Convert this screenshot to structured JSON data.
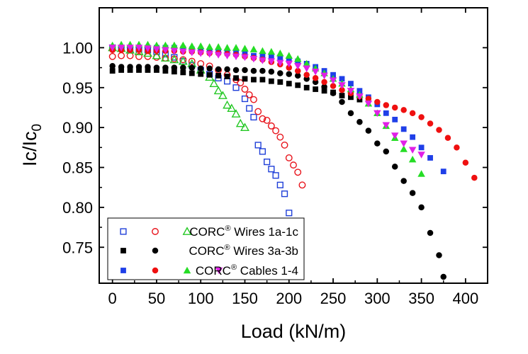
{
  "chart_data": {
    "type": "scatter",
    "title": "",
    "xlabel": "Load (kN/m)",
    "ylabel": {
      "main": "Ic/Ic",
      "sub": "0"
    },
    "xlim": [
      -15,
      425
    ],
    "ylim": [
      0.705,
      1.05
    ],
    "xticks": [
      0,
      50,
      100,
      150,
      200,
      250,
      300,
      350,
      400
    ],
    "yticks": [
      0.75,
      0.8,
      0.85,
      0.9,
      0.95,
      1.0
    ],
    "xtick_labels": [
      "0",
      "50",
      "100",
      "150",
      "200",
      "250",
      "300",
      "350",
      "400"
    ],
    "ytick_labels": [
      "0.75",
      "0.80",
      "0.85",
      "0.90",
      "0.95",
      "1.00"
    ],
    "grid": false,
    "legend_position": "bottom-left",
    "legend": [
      {
        "group": "wires-1",
        "text": "CORC",
        "mark": "®",
        "suffix": " Wires 1a-1c"
      },
      {
        "group": "wires-3",
        "text": "CORC",
        "mark": "®",
        "suffix": " Wires 3a-3b"
      },
      {
        "group": "cables",
        "text": "CORC",
        "mark": "®",
        "suffix": " Cables 1-4"
      }
    ],
    "series": [
      {
        "name": "Wire 1a",
        "group": "wires-1",
        "marker": "square",
        "filled": false,
        "color": "#1f3fd8",
        "x": [
          0,
          10,
          20,
          30,
          40,
          50,
          60,
          70,
          80,
          90,
          100,
          110,
          120,
          130,
          140,
          150,
          155,
          160,
          165,
          170,
          175,
          180,
          185,
          190,
          195,
          200
        ],
        "y": [
          1.0,
          0.999,
          0.998,
          0.998,
          0.997,
          0.995,
          0.992,
          0.988,
          0.983,
          0.978,
          0.972,
          0.967,
          0.962,
          0.958,
          0.95,
          0.936,
          0.924,
          0.913,
          0.878,
          0.87,
          0.857,
          0.848,
          0.84,
          0.828,
          0.817,
          0.793
        ]
      },
      {
        "name": "Wire 1b",
        "group": "wires-1",
        "marker": "circle",
        "filled": false,
        "color": "#e8141c",
        "x": [
          0,
          10,
          20,
          30,
          40,
          50,
          60,
          70,
          80,
          90,
          100,
          110,
          120,
          130,
          140,
          145,
          150,
          155,
          160,
          165,
          170,
          175,
          180,
          185,
          190,
          195,
          200,
          205,
          210,
          215
        ],
        "y": [
          0.989,
          0.99,
          0.99,
          0.989,
          0.989,
          0.988,
          0.987,
          0.986,
          0.985,
          0.983,
          0.98,
          0.977,
          0.972,
          0.966,
          0.96,
          0.956,
          0.948,
          0.941,
          0.935,
          0.92,
          0.911,
          0.909,
          0.902,
          0.896,
          0.888,
          0.878,
          0.862,
          0.853,
          0.844,
          0.828
        ]
      },
      {
        "name": "Wire 1c",
        "group": "wires-1",
        "marker": "triangle-up",
        "filled": false,
        "color": "#25c825",
        "x": [
          0,
          10,
          20,
          30,
          40,
          50,
          60,
          70,
          80,
          90,
          100,
          110,
          115,
          120,
          125,
          130,
          135,
          140,
          145,
          150
        ],
        "y": [
          1.0,
          0.999,
          0.997,
          0.995,
          0.993,
          0.99,
          0.987,
          0.985,
          0.983,
          0.98,
          0.972,
          0.963,
          0.955,
          0.946,
          0.94,
          0.928,
          0.924,
          0.917,
          0.905,
          0.9
        ]
      },
      {
        "name": "Wire 3a",
        "group": "wires-3",
        "marker": "square",
        "filled": true,
        "color": "#000000",
        "x": [
          0,
          10,
          20,
          30,
          40,
          50,
          60,
          70,
          80,
          90,
          100,
          110,
          120,
          130,
          140,
          150,
          160,
          170,
          180,
          190,
          200,
          210,
          220,
          230,
          240,
          250,
          260,
          270,
          280
        ],
        "y": [
          0.971,
          0.972,
          0.972,
          0.972,
          0.972,
          0.972,
          0.971,
          0.97,
          0.969,
          0.968,
          0.967,
          0.966,
          0.965,
          0.964,
          0.962,
          0.961,
          0.96,
          0.96,
          0.958,
          0.957,
          0.955,
          0.953,
          0.95,
          0.948,
          0.946,
          0.944,
          0.94,
          0.938,
          0.935
        ]
      },
      {
        "name": "Wire 3b",
        "group": "wires-3",
        "marker": "circle",
        "filled": true,
        "color": "#000000",
        "x": [
          0,
          10,
          20,
          30,
          40,
          50,
          60,
          70,
          80,
          90,
          100,
          110,
          120,
          130,
          140,
          150,
          160,
          170,
          180,
          190,
          200,
          210,
          220,
          230,
          240,
          250,
          260,
          270,
          280,
          290,
          300,
          310,
          320,
          330,
          340,
          350,
          360,
          370,
          375
        ],
        "y": [
          0.977,
          0.976,
          0.976,
          0.976,
          0.976,
          0.975,
          0.975,
          0.975,
          0.975,
          0.975,
          0.974,
          0.974,
          0.973,
          0.973,
          0.972,
          0.972,
          0.971,
          0.971,
          0.97,
          0.968,
          0.967,
          0.965,
          0.961,
          0.957,
          0.951,
          0.943,
          0.932,
          0.918,
          0.907,
          0.896,
          0.88,
          0.87,
          0.851,
          0.833,
          0.818,
          0.8,
          0.768,
          0.74,
          0.713
        ]
      },
      {
        "name": "Cable 1",
        "group": "cables",
        "marker": "square",
        "filled": true,
        "color": "#1f3fe8",
        "x": [
          0,
          10,
          20,
          30,
          40,
          50,
          60,
          70,
          80,
          90,
          100,
          110,
          120,
          130,
          140,
          150,
          160,
          170,
          180,
          190,
          200,
          210,
          220,
          230,
          240,
          250,
          260,
          270,
          280,
          290,
          300,
          310,
          320,
          330,
          340,
          350,
          360,
          375
        ],
        "y": [
          1.0,
          1.0,
          1.0,
          1.0,
          1.0,
          1.0,
          1.0,
          1.0,
          0.999,
          0.998,
          0.997,
          0.996,
          0.995,
          0.994,
          0.993,
          0.992,
          0.99,
          0.989,
          0.988,
          0.987,
          0.985,
          0.983,
          0.98,
          0.976,
          0.971,
          0.966,
          0.961,
          0.955,
          0.946,
          0.938,
          0.929,
          0.918,
          0.91,
          0.898,
          0.888,
          0.875,
          0.862,
          0.845
        ]
      },
      {
        "name": "Cable 2",
        "group": "cables",
        "marker": "circle",
        "filled": true,
        "color": "#ef1010",
        "x": [
          0,
          10,
          20,
          30,
          40,
          50,
          60,
          70,
          80,
          90,
          100,
          110,
          120,
          130,
          140,
          150,
          160,
          170,
          180,
          190,
          200,
          210,
          220,
          230,
          240,
          250,
          260,
          270,
          280,
          290,
          300,
          310,
          320,
          330,
          340,
          350,
          360,
          370,
          380,
          390,
          400,
          410
        ],
        "y": [
          0.997,
          0.997,
          0.997,
          0.997,
          0.996,
          0.996,
          0.996,
          0.996,
          0.995,
          0.995,
          0.994,
          0.993,
          0.993,
          0.992,
          0.991,
          0.989,
          0.987,
          0.985,
          0.982,
          0.979,
          0.975,
          0.971,
          0.966,
          0.962,
          0.957,
          0.952,
          0.947,
          0.943,
          0.939,
          0.936,
          0.932,
          0.928,
          0.925,
          0.922,
          0.918,
          0.913,
          0.905,
          0.897,
          0.887,
          0.875,
          0.856,
          0.837
        ]
      },
      {
        "name": "Cable 3",
        "group": "cables",
        "marker": "triangle-up",
        "filled": true,
        "color": "#25dd25",
        "x": [
          0,
          10,
          20,
          30,
          40,
          50,
          60,
          70,
          80,
          90,
          100,
          110,
          120,
          130,
          140,
          150,
          160,
          170,
          180,
          190,
          200,
          210,
          220,
          230,
          240,
          250,
          260,
          270,
          280,
          290,
          300,
          310,
          320,
          330,
          340,
          350
        ],
        "y": [
          1.003,
          1.004,
          1.004,
          1.004,
          1.004,
          1.003,
          1.003,
          1.003,
          1.003,
          1.002,
          1.002,
          1.001,
          1.001,
          1.0,
          1.0,
          0.999,
          0.998,
          0.996,
          0.995,
          0.993,
          0.99,
          0.986,
          0.98,
          0.974,
          0.968,
          0.961,
          0.955,
          0.948,
          0.941,
          0.93,
          0.918,
          0.902,
          0.887,
          0.873,
          0.86,
          0.842
        ]
      },
      {
        "name": "Cable 4",
        "group": "cables",
        "marker": "triangle-down",
        "filled": true,
        "color": "#e020e6",
        "x": [
          0,
          10,
          20,
          30,
          40,
          50,
          60,
          70,
          80,
          90,
          100,
          110,
          120,
          130,
          140,
          150,
          160,
          170,
          180,
          190,
          200,
          210,
          220,
          230,
          240,
          250,
          260,
          270,
          280,
          290,
          300,
          310,
          320,
          330,
          340,
          350
        ],
        "y": [
          1.0,
          1.0,
          1.0,
          1.0,
          0.999,
          0.998,
          0.997,
          0.996,
          0.995,
          0.994,
          0.993,
          0.992,
          0.991,
          0.99,
          0.989,
          0.988,
          0.986,
          0.984,
          0.983,
          0.981,
          0.98,
          0.977,
          0.974,
          0.97,
          0.965,
          0.959,
          0.953,
          0.946,
          0.939,
          0.93,
          0.918,
          0.903,
          0.89,
          0.88,
          0.872,
          0.866
        ]
      }
    ]
  }
}
